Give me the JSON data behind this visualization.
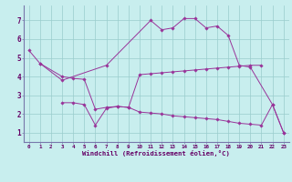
{
  "xlabel": "Windchill (Refroidissement éolien,°C)",
  "bg_color": "#c8eeee",
  "line_color": "#993399",
  "grid_color": "#99cccc",
  "xlim": [
    -0.5,
    23.5
  ],
  "ylim": [
    0.5,
    7.8
  ],
  "yticks": [
    1,
    2,
    3,
    4,
    5,
    6,
    7
  ],
  "xticks": [
    0,
    1,
    2,
    3,
    4,
    5,
    6,
    7,
    8,
    9,
    10,
    11,
    12,
    13,
    14,
    15,
    16,
    17,
    18,
    19,
    20,
    21,
    22,
    23
  ],
  "s1x": [
    0,
    1,
    3,
    7,
    11,
    12,
    13,
    14,
    15,
    16,
    17,
    18,
    19,
    20,
    22,
    23
  ],
  "s1y": [
    5.4,
    4.7,
    3.8,
    4.6,
    7.0,
    6.5,
    6.6,
    7.1,
    7.1,
    6.6,
    6.7,
    6.2,
    4.6,
    4.5,
    2.5,
    1.0
  ],
  "s2x": [
    1,
    3,
    4,
    5,
    6,
    7,
    8,
    9,
    10,
    11,
    12,
    13,
    14,
    15,
    16,
    17,
    18,
    19,
    20,
    21
  ],
  "s2y": [
    4.7,
    4.0,
    3.9,
    3.85,
    2.25,
    2.35,
    2.4,
    2.35,
    4.1,
    4.15,
    4.2,
    4.25,
    4.3,
    4.35,
    4.4,
    4.45,
    4.5,
    4.55,
    4.6,
    4.6
  ],
  "s3x": [
    3,
    4,
    5,
    6,
    7,
    8,
    9,
    10,
    11,
    12,
    13,
    14,
    15,
    16,
    17,
    18,
    19,
    20,
    21,
    22,
    23
  ],
  "s3y": [
    2.6,
    2.6,
    2.5,
    1.4,
    2.3,
    2.4,
    2.35,
    2.1,
    2.05,
    2.0,
    1.9,
    1.85,
    1.8,
    1.75,
    1.7,
    1.6,
    1.5,
    1.45,
    1.4,
    2.5,
    1.0
  ]
}
